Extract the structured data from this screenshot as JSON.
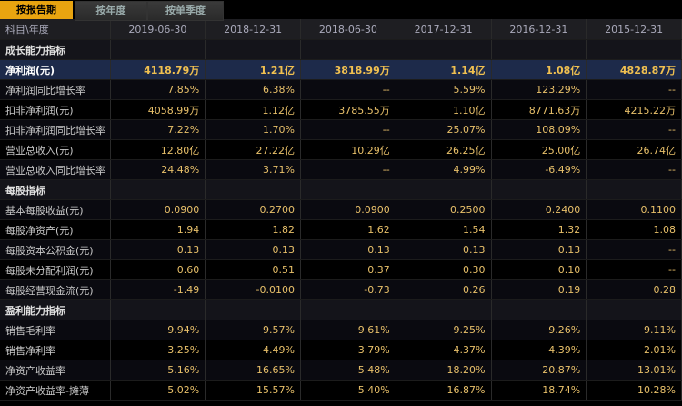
{
  "tabs": [
    {
      "label": "按报告期",
      "active": true
    },
    {
      "label": "按年度",
      "active": false
    },
    {
      "label": "按单季度",
      "active": false
    }
  ],
  "header": {
    "first": "科目\\年度",
    "periods": [
      "2019-06-30",
      "2018-12-31",
      "2018-06-30",
      "2017-12-31",
      "2016-12-31",
      "2015-12-31"
    ]
  },
  "rows": [
    {
      "type": "section",
      "label": "成长能力指标"
    },
    {
      "type": "row",
      "highlight": true,
      "label": "净利润(元)",
      "values": [
        "4118.79万",
        "1.21亿",
        "3818.99万",
        "1.14亿",
        "1.08亿",
        "4828.87万"
      ]
    },
    {
      "type": "row",
      "label": "净利润同比增长率",
      "values": [
        "7.85%",
        "6.38%",
        "--",
        "5.59%",
        "123.29%",
        "--"
      ]
    },
    {
      "type": "row",
      "label": "扣非净利润(元)",
      "values": [
        "4058.99万",
        "1.12亿",
        "3785.55万",
        "1.10亿",
        "8771.63万",
        "4215.22万"
      ]
    },
    {
      "type": "row",
      "label": "扣非净利润同比增长率",
      "values": [
        "7.22%",
        "1.70%",
        "--",
        "25.07%",
        "108.09%",
        "--"
      ]
    },
    {
      "type": "row",
      "label": "营业总收入(元)",
      "values": [
        "12.80亿",
        "27.22亿",
        "10.29亿",
        "26.25亿",
        "25.00亿",
        "26.74亿"
      ]
    },
    {
      "type": "row",
      "label": "营业总收入同比增长率",
      "values": [
        "24.48%",
        "3.71%",
        "--",
        "4.99%",
        "-6.49%",
        "--"
      ]
    },
    {
      "type": "section",
      "label": "每股指标"
    },
    {
      "type": "row",
      "label": "基本每股收益(元)",
      "values": [
        "0.0900",
        "0.2700",
        "0.0900",
        "0.2500",
        "0.2400",
        "0.1100"
      ]
    },
    {
      "type": "row",
      "label": "每股净资产(元)",
      "values": [
        "1.94",
        "1.82",
        "1.62",
        "1.54",
        "1.32",
        "1.08"
      ]
    },
    {
      "type": "row",
      "label": "每股资本公积金(元)",
      "values": [
        "0.13",
        "0.13",
        "0.13",
        "0.13",
        "0.13",
        "--"
      ]
    },
    {
      "type": "row",
      "label": "每股未分配利润(元)",
      "values": [
        "0.60",
        "0.51",
        "0.37",
        "0.30",
        "0.10",
        "--"
      ]
    },
    {
      "type": "row",
      "label": "每股经营现金流(元)",
      "values": [
        "-1.49",
        "-0.0100",
        "-0.73",
        "0.26",
        "0.19",
        "0.28"
      ]
    },
    {
      "type": "section",
      "label": "盈利能力指标"
    },
    {
      "type": "row",
      "label": "销售毛利率",
      "values": [
        "9.94%",
        "9.57%",
        "9.61%",
        "9.25%",
        "9.26%",
        "9.11%"
      ]
    },
    {
      "type": "row",
      "label": "销售净利率",
      "values": [
        "3.25%",
        "4.49%",
        "3.79%",
        "4.37%",
        "4.39%",
        "2.01%"
      ]
    },
    {
      "type": "row",
      "label": "净资产收益率",
      "values": [
        "5.16%",
        "16.65%",
        "5.48%",
        "18.20%",
        "20.87%",
        "13.01%"
      ]
    },
    {
      "type": "row",
      "label": "净资产收益率-摊薄",
      "values": [
        "5.02%",
        "15.57%",
        "5.40%",
        "16.87%",
        "18.74%",
        "10.28%"
      ]
    }
  ],
  "colors": {
    "accent": "#e8a410",
    "highlight_row": "#1d2a4a",
    "value": "#e8c06a"
  }
}
